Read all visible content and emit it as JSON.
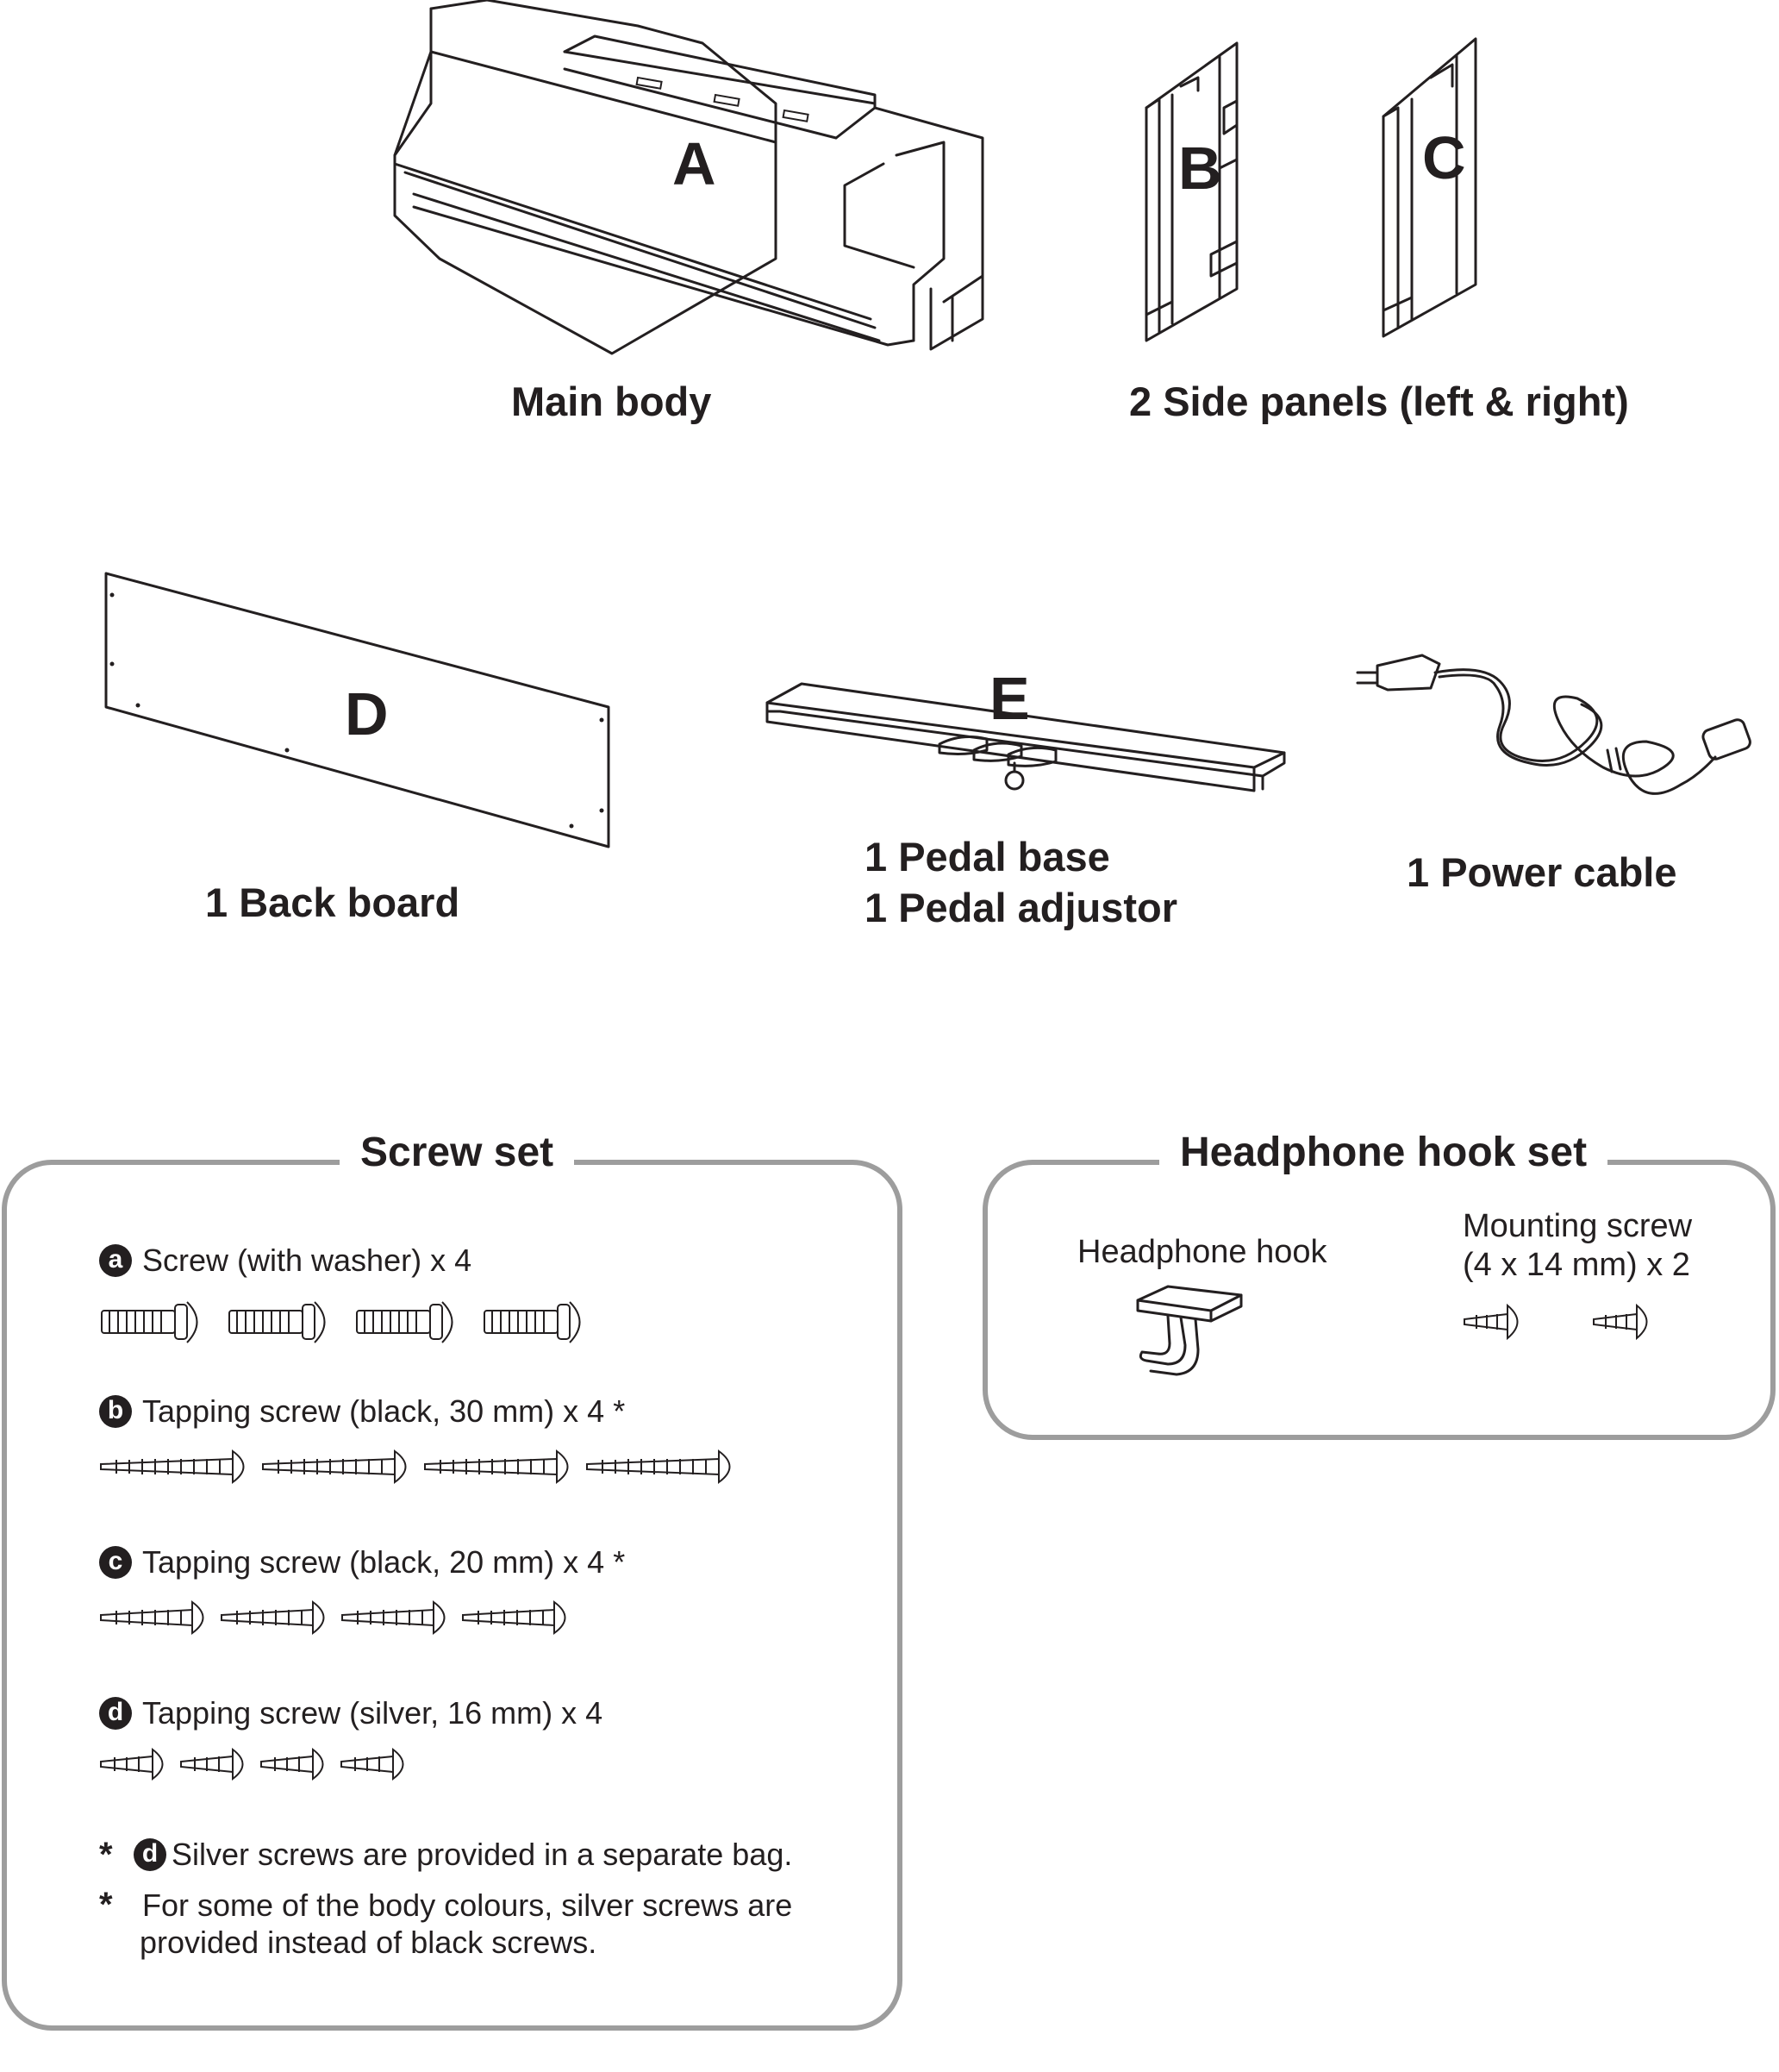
{
  "parts": {
    "main_body": {
      "letter": "A",
      "caption": "Main body"
    },
    "side_panels": {
      "letter_left": "B",
      "letter_right": "C",
      "caption": "2 Side panels (left & right)"
    },
    "back_board": {
      "letter": "D",
      "caption": "1 Back board"
    },
    "pedal": {
      "letter": "E",
      "caption_line1": "1 Pedal base",
      "caption_line2": "1 Pedal adjustor"
    },
    "power_cable": {
      "caption": "1 Power cable"
    }
  },
  "screw_set": {
    "title": "Screw set",
    "items": [
      {
        "badge": "a",
        "label": "Screw (with washer) x 4",
        "count": 4
      },
      {
        "badge": "b",
        "label": "Tapping screw (black, 30 mm) x 4 *",
        "count": 4
      },
      {
        "badge": "c",
        "label": "Tapping screw (black, 20 mm) x 4 *",
        "count": 4
      },
      {
        "badge": "d",
        "label": "Tapping screw (silver, 16 mm) x 4",
        "count": 4
      }
    ],
    "notes": [
      {
        "star": "*",
        "badge": "d",
        "text": "Silver screws are provided in a separate bag."
      },
      {
        "star": "*",
        "text_line1": "For some of the body colours, silver screws are",
        "text_line2": "provided instead of black screws."
      }
    ]
  },
  "headphone_hook_set": {
    "title": "Headphone hook set",
    "hook_label": "Headphone hook",
    "screw_label_line1": "Mounting screw",
    "screw_label_line2": "(4 x 14 mm) x 2",
    "screw_count": 2
  },
  "colors": {
    "ink": "#231f20",
    "box_border": "#9d9d9d",
    "background": "#ffffff"
  }
}
